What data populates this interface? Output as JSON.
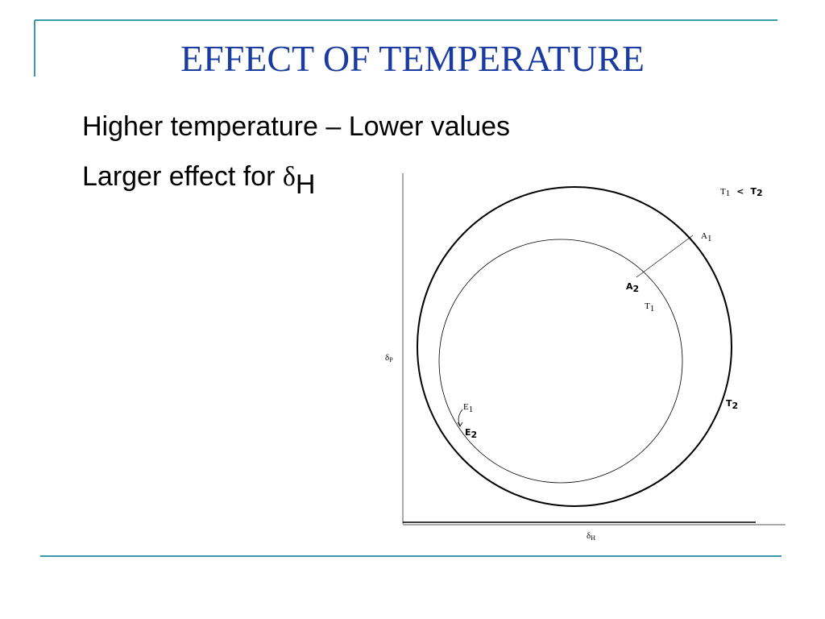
{
  "title": "EFFECT OF TEMPERATURE",
  "bullets": [
    {
      "text": "Higher temperature – Lower values"
    },
    {
      "text": "Larger effect for ",
      "symbol": "δ",
      "sub": "H"
    }
  ],
  "diagram": {
    "legend": {
      "t1": "T",
      "t1_sub": "1",
      "op": "<",
      "t2": "T",
      "t2_sub": "2"
    },
    "y_axis": {
      "symbol": "δ",
      "sub": "P"
    },
    "x_axis": {
      "symbol": "δ",
      "sub": "H"
    },
    "labels": [
      {
        "text": "A",
        "sub": "1"
      },
      {
        "text": "A",
        "sub": "2"
      },
      {
        "text": "T",
        "sub": "1"
      },
      {
        "text": "E",
        "sub": "1"
      },
      {
        "text": "E",
        "sub": "2"
      },
      {
        "text": "T",
        "sub": "2"
      }
    ]
  }
}
